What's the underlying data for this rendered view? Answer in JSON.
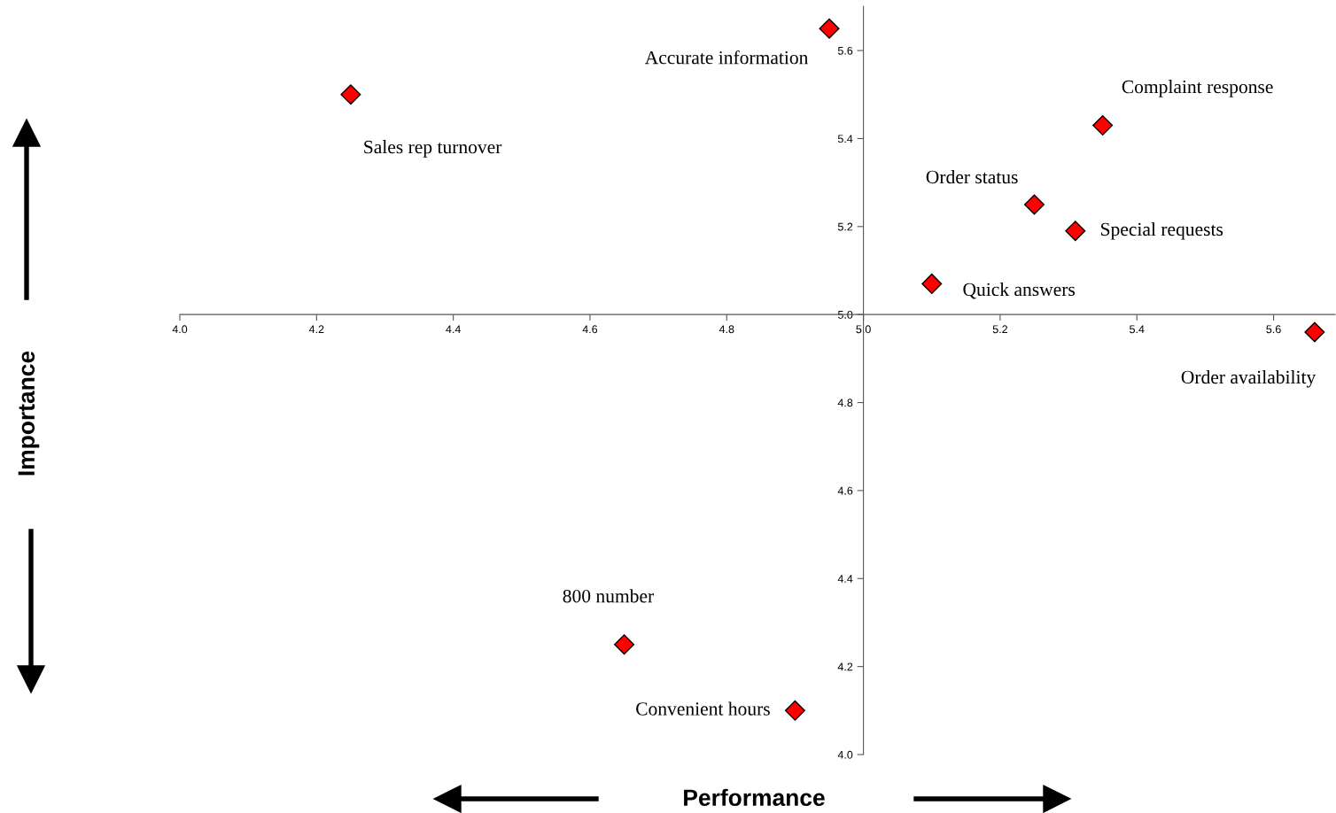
{
  "chart_data": {
    "type": "scatter",
    "xlabel": "Performance",
    "x": [
      4.95,
      4.25,
      5.35,
      5.25,
      5.31,
      5.1,
      5.66,
      4.65,
      4.9
    ],
    "series": [
      {
        "color": "#ff0000",
        "values": [
          5.65,
          5.5,
          5.43,
          5.25,
          5.19,
          5.07,
          4.96,
          4.25,
          4.1
        ]
      }
    ],
    "annotations": [
      {
        "text": "Accurate information",
        "x": 4.95,
        "y": 5.65
      },
      {
        "text": "Sales rep turnover",
        "x": 4.25,
        "y": 5.5
      },
      {
        "text": "Complaint response",
        "x": 5.35,
        "y": 5.43
      },
      {
        "text": "Order status",
        "x": 5.25,
        "y": 5.25
      },
      {
        "text": "Special requests",
        "x": 5.31,
        "y": 5.19
      },
      {
        "text": "Quick answers",
        "x": 5.1,
        "y": 5.07
      },
      {
        "text": "Order availability",
        "x": 5.66,
        "y": 4.96
      },
      {
        "text": "800 number",
        "x": 4.65,
        "y": 4.25
      },
      {
        "text": "Convenient hours",
        "x": 4.9,
        "y": 4.1
      },
      "Importance"
    ],
    "xlim": [
      4.0,
      5.69
    ],
    "ylim": [
      4.0,
      5.7
    ],
    "xticks": [
      {
        "value": 4,
        "label": "4.0"
      },
      4.2,
      4.4,
      4.6,
      4.8,
      {
        "value": 5,
        "label": "5.0"
      },
      5.2,
      5.4,
      5.6
    ],
    "yticks": [
      {
        "value": 4,
        "label": "4.0"
      },
      4.2,
      4.4,
      4.6,
      4.8,
      {
        "value": 5,
        "label": "5.0"
      },
      5.2,
      5.4,
      5.6
    ],
    "marker": "diamond",
    "grid": false,
    "legend": false
  }
}
